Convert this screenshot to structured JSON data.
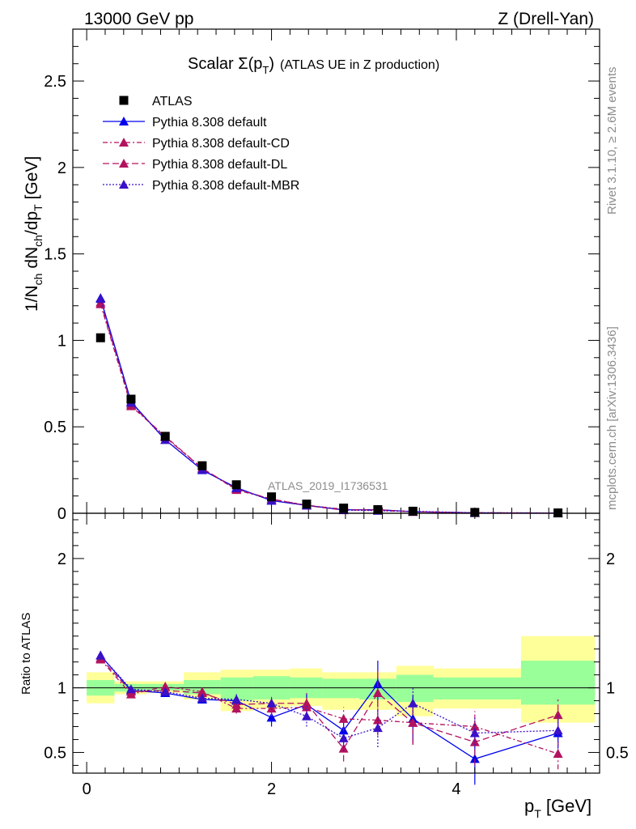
{
  "header": {
    "left": "13000 GeV pp",
    "right": "Z (Drell-Yan)"
  },
  "side": {
    "rivet": "Rivet 3.1.10, ≥ 2.6M events",
    "mcplots": "mcplots.cern.ch [arXiv:1306.3436]"
  },
  "watermark": "ATLAS_2019_I1736531",
  "chart_data": {
    "type": "line",
    "title_main": "Scalar Σ(p",
    "title_sub": "T",
    "title_close": ")",
    "title_extra": "(ATLAS UE in Z production)",
    "xlabel_main": "p",
    "xlabel_sub": "T",
    "xlabel_unit": " [GeV]",
    "ylabel": "1/N_ch dN_ch/dp_T [GeV]",
    "ylabel_parts": [
      "1/N",
      "ch",
      " dN",
      "ch",
      "/dp",
      "T",
      " [GeV]"
    ],
    "ratio_ylabel": "Ratio to ATLAS",
    "xlim": [
      -0.15,
      5.55
    ],
    "ylim": [
      0,
      2.8
    ],
    "ratio_ylim": [
      0.34,
      2.35
    ],
    "x_ticks": [
      "0",
      "2",
      "4"
    ],
    "y_ticks": [
      "0",
      "0.5",
      "1",
      "1.5",
      "2",
      "2.5"
    ],
    "ratio_ticks": [
      "0.5",
      "1",
      "2"
    ],
    "x": [
      0.15,
      0.48,
      0.85,
      1.25,
      1.62,
      2.0,
      2.38,
      2.78,
      3.15,
      3.53,
      4.2,
      5.1
    ],
    "bin_edges": [
      0.0,
      0.3,
      0.65,
      1.05,
      1.45,
      1.8,
      2.2,
      2.55,
      2.95,
      3.35,
      3.75,
      4.7,
      5.5
    ],
    "band_yellow": [
      [
        0.88,
        1.12
      ],
      [
        0.95,
        1.05
      ],
      [
        0.96,
        1.05
      ],
      [
        0.91,
        1.12
      ],
      [
        0.82,
        1.14
      ],
      [
        0.84,
        1.14
      ],
      [
        0.86,
        1.15
      ],
      [
        0.83,
        1.12
      ],
      [
        0.83,
        1.12
      ],
      [
        0.78,
        1.17
      ],
      [
        0.84,
        1.15
      ],
      [
        0.73,
        1.4
      ]
    ],
    "band_green": [
      [
        0.94,
        1.06
      ],
      [
        0.97,
        1.03
      ],
      [
        0.98,
        1.03
      ],
      [
        0.95,
        1.06
      ],
      [
        0.9,
        1.08
      ],
      [
        0.91,
        1.09
      ],
      [
        0.92,
        1.08
      ],
      [
        0.92,
        1.07
      ],
      [
        0.91,
        1.07
      ],
      [
        0.89,
        1.1
      ],
      [
        0.91,
        1.08
      ],
      [
        0.87,
        1.21
      ]
    ],
    "series": [
      {
        "name": "ATLAS",
        "color": "#000000",
        "marker": "square",
        "values": [
          1.015,
          0.66,
          0.445,
          0.275,
          0.165,
          0.095,
          0.053,
          0.03,
          0.021,
          0.012,
          0.005,
          0.002
        ]
      },
      {
        "name": "Pythia 8.308 default",
        "color": "#0000ee",
        "dash": "",
        "values": [
          1.245,
          0.645,
          0.425,
          0.25,
          0.148,
          0.073,
          0.046,
          0.02,
          0.021,
          0.009,
          0.002,
          0.0013
        ],
        "ratio": [
          1.25,
          0.98,
          0.96,
          0.91,
          0.9,
          0.77,
          0.87,
          0.67,
          1.03,
          0.76,
          0.45,
          0.65
        ],
        "ratio_err": [
          0.02,
          0.02,
          0.02,
          0.03,
          0.05,
          0.07,
          0.08,
          0.1,
          0.18,
          0.18,
          0.2,
          0.12
        ]
      },
      {
        "name": "Pythia 8.308 default-CD",
        "color": "#b3125f",
        "dash": "6,3,2,3",
        "values": [
          1.21,
          0.62,
          0.445,
          0.26,
          0.135,
          0.082,
          0.046,
          0.023,
          0.016,
          0.009,
          0.003,
          0.0014
        ],
        "ratio": [
          1.22,
          0.95,
          1.01,
          0.97,
          0.84,
          0.84,
          0.85,
          0.76,
          0.75,
          0.73,
          0.7,
          0.49
        ],
        "ratio_err": [
          0.02,
          0.02,
          0.03,
          0.03,
          0.04,
          0.06,
          0.07,
          0.09,
          0.12,
          0.17,
          0.12,
          0.12
        ]
      },
      {
        "name": "Pythia 8.308 default-DL",
        "color": "#b3125f",
        "dash": "8,4",
        "values": [
          1.22,
          0.63,
          0.44,
          0.26,
          0.14,
          0.082,
          0.045,
          0.018,
          0.02,
          0.009,
          0.003,
          0.0016
        ],
        "ratio": [
          1.23,
          0.97,
          0.98,
          0.96,
          0.87,
          0.88,
          0.88,
          0.53,
          0.96,
          0.73,
          0.58,
          0.79
        ],
        "ratio_err": [
          0.02,
          0.02,
          0.02,
          0.04,
          0.05,
          0.05,
          0.08,
          0.1,
          0.18,
          0.17,
          0.18,
          0.12
        ]
      },
      {
        "name": "Pythia 8.308 default-MBR",
        "color": "#3a10c8",
        "dash": "2,2",
        "values": [
          1.24,
          0.64,
          0.425,
          0.252,
          0.145,
          0.074,
          0.045,
          0.019,
          0.015,
          0.011,
          0.003,
          0.0013
        ],
        "ratio": [
          1.25,
          0.99,
          0.97,
          0.92,
          0.91,
          0.88,
          0.78,
          0.61,
          0.69,
          0.88,
          0.65,
          0.67
        ],
        "ratio_err": [
          0.02,
          0.02,
          0.02,
          0.03,
          0.04,
          0.05,
          0.08,
          0.1,
          0.15,
          0.12,
          0.12,
          0.12
        ]
      }
    ]
  }
}
